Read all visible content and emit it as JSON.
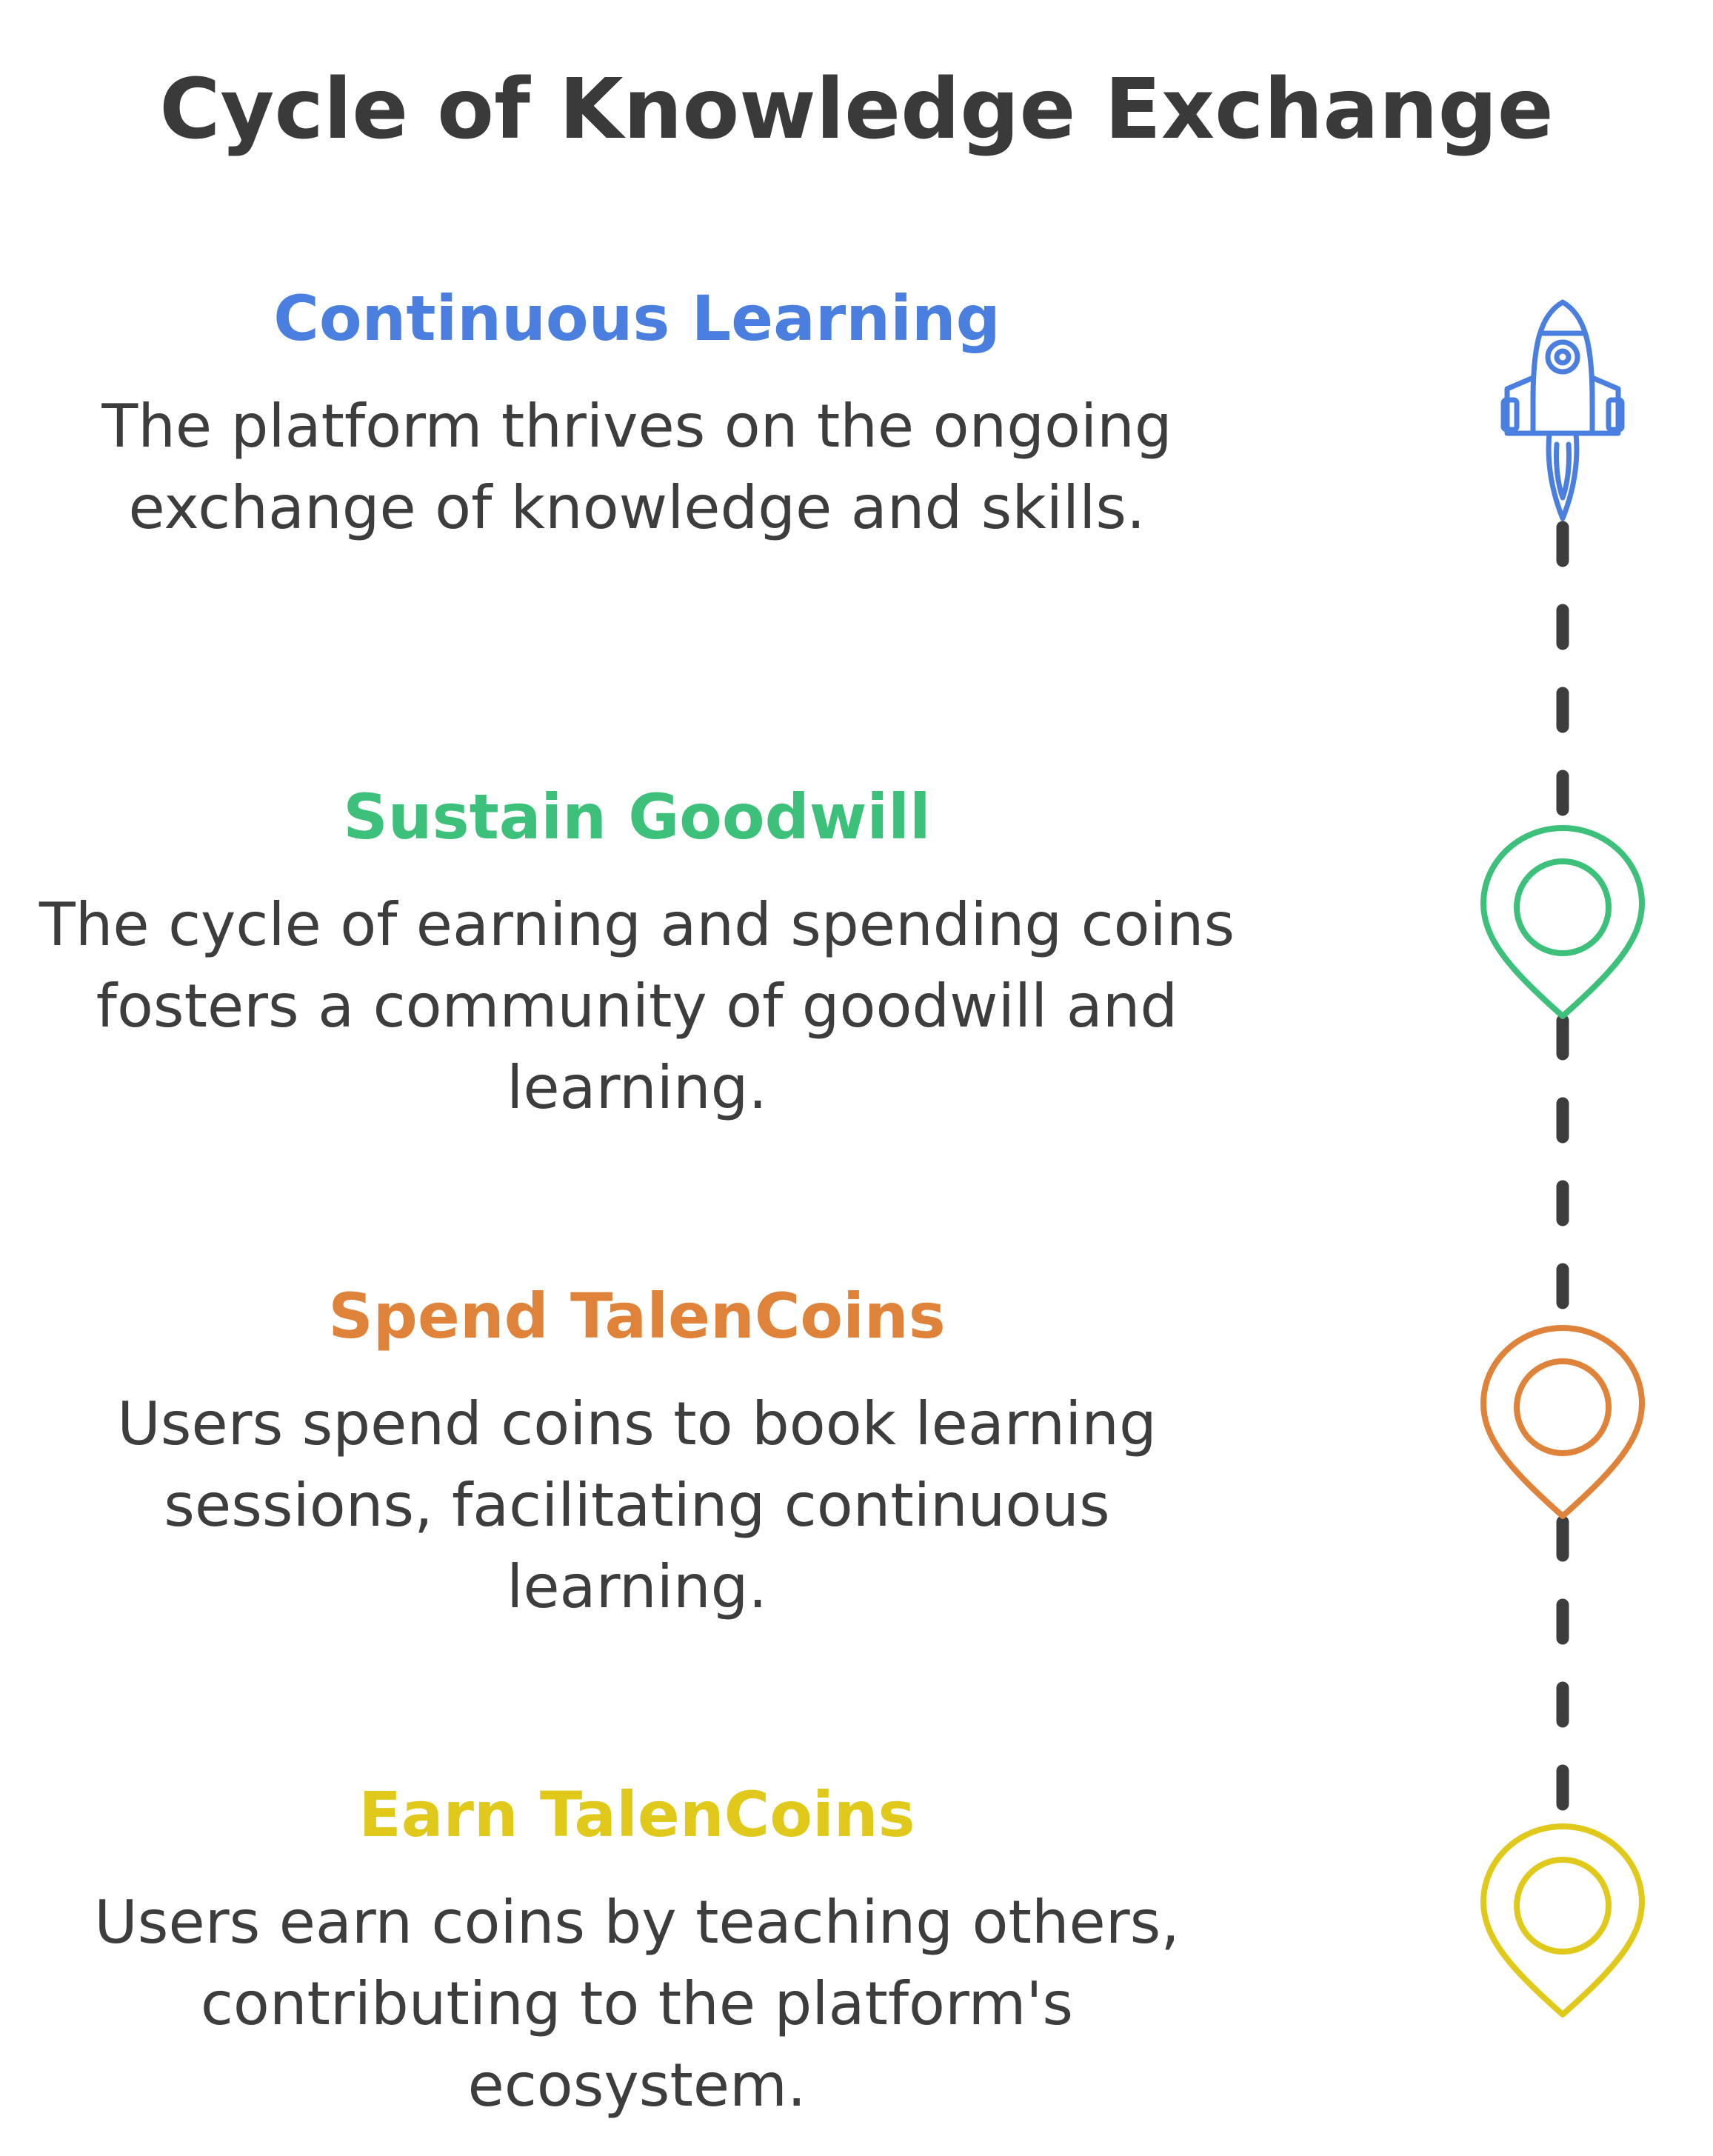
{
  "title": "Cycle of Knowledge Exchange",
  "steps": [
    {
      "heading": "Continuous Learning",
      "description": "The platform thrives on the ongoing exchange of knowledge and skills.",
      "color": "#4a7fe0",
      "icon": "rocket-icon"
    },
    {
      "heading": "Sustain Goodwill",
      "description": "The cycle of earning and spending coins fosters a community of goodwill and learning.",
      "color": "#3cc07a",
      "icon": "location-pin-icon"
    },
    {
      "heading": "Spend TalenCoins",
      "description": "Users spend coins to book learning sessions, facilitating continuous learning.",
      "color": "#e0833a",
      "icon": "location-pin-icon"
    },
    {
      "heading": "Earn TalenCoins",
      "description": "Users earn coins by teaching others, contributing to the platform's ecosystem.",
      "color": "#e0c91a",
      "icon": "location-pin-icon"
    }
  ],
  "connector_color": "#3d3d3d"
}
